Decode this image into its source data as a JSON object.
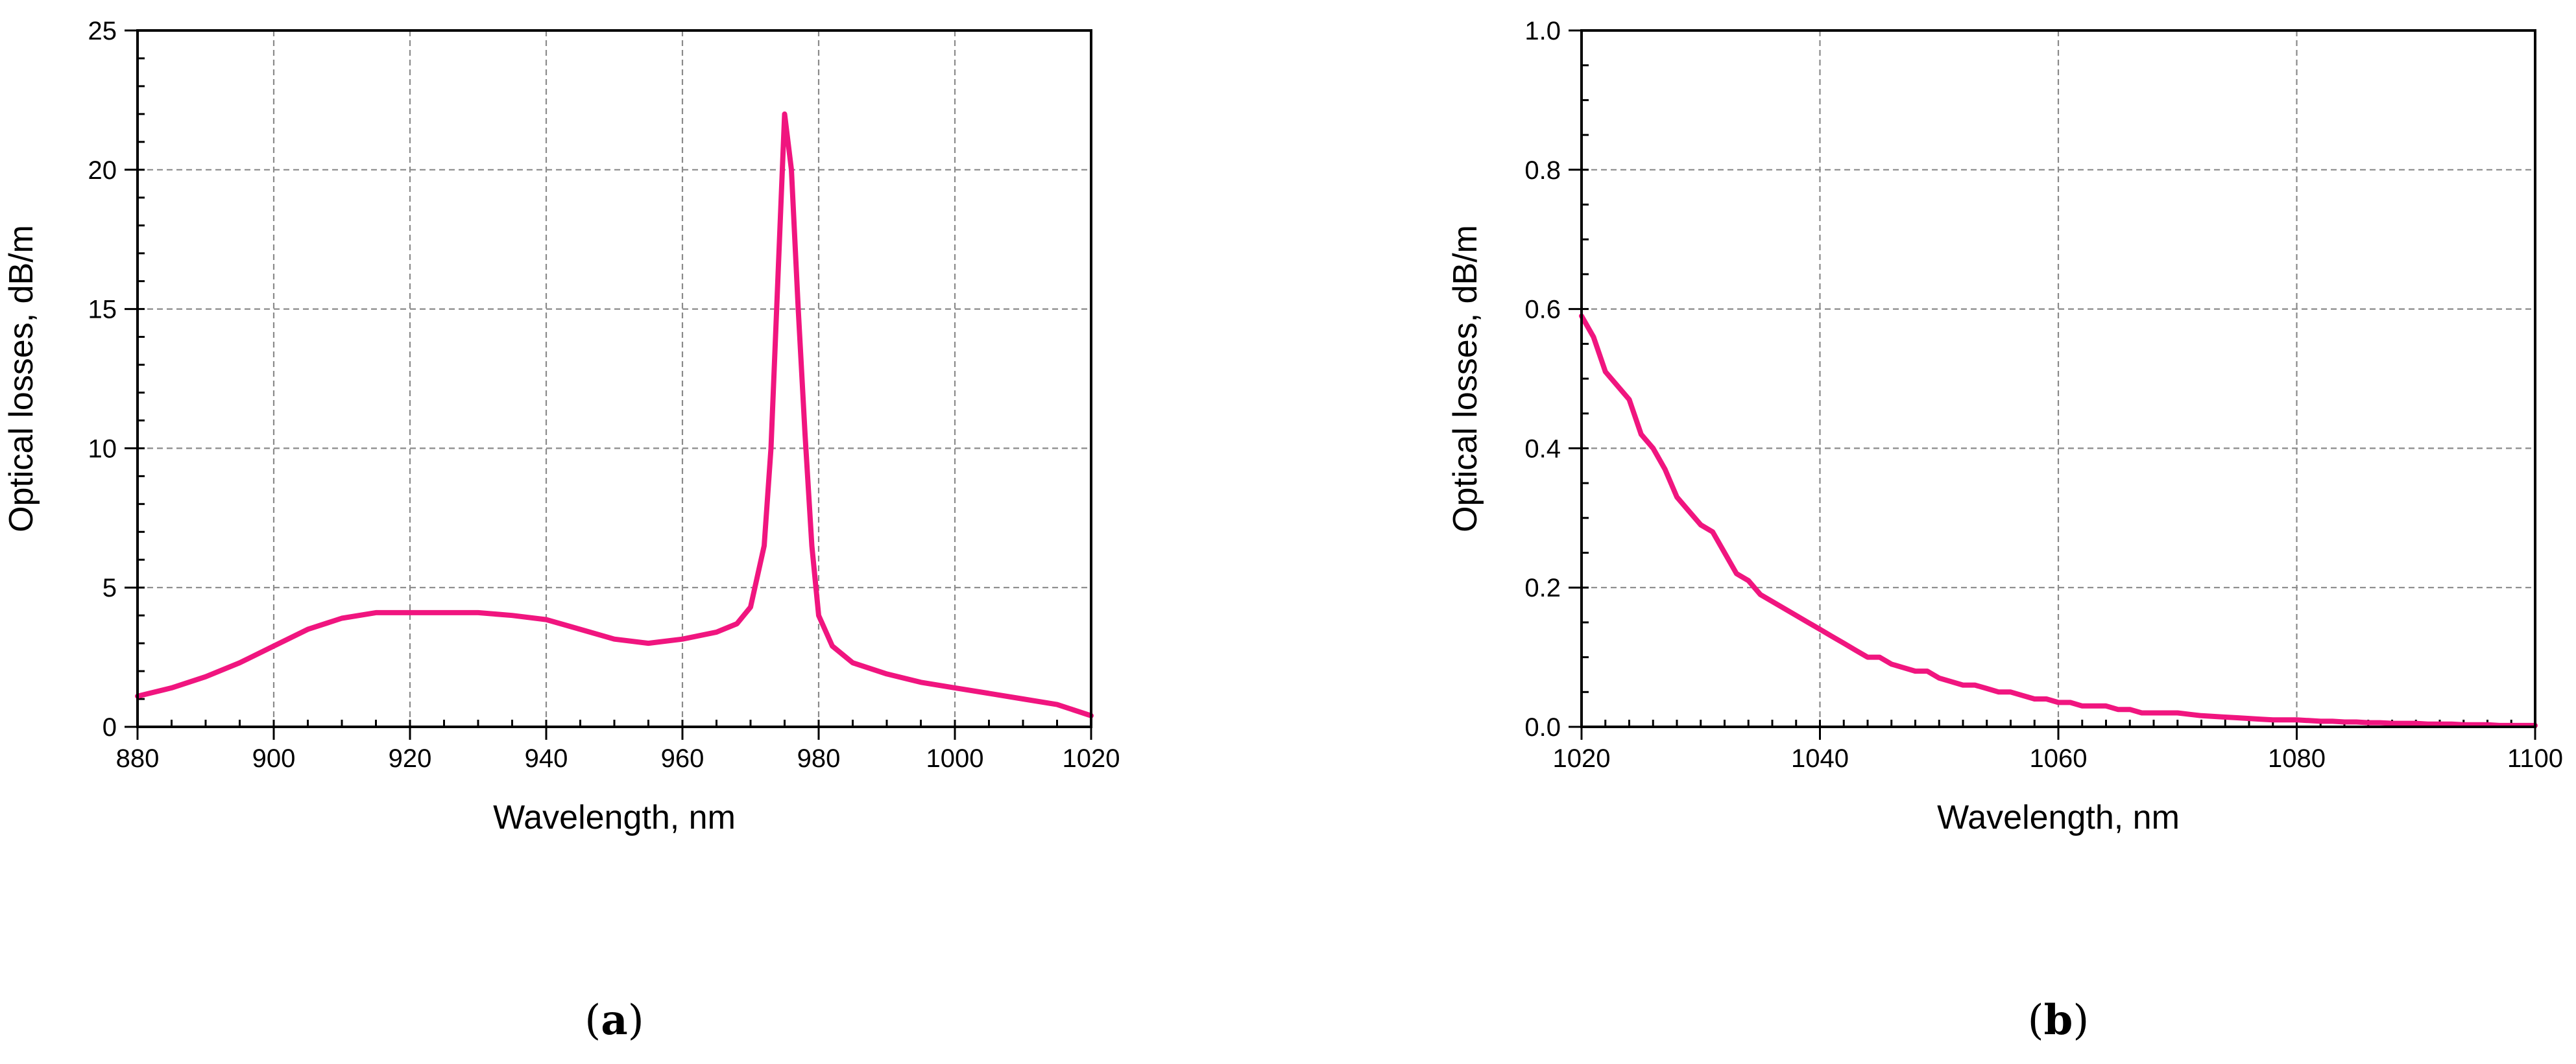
{
  "colors": {
    "series": "#f0157f",
    "axis": "#000000",
    "grid": "#8a8a8a"
  },
  "chart_data": [
    {
      "type": "line",
      "panel_label": {
        "open": "(",
        "letter": "a",
        "close": ")"
      },
      "xlabel": "Wavelength, nm",
      "ylabel": "Optical losses, dB/m",
      "xlim": [
        880,
        1020
      ],
      "ylim": [
        0,
        25
      ],
      "xticks": [
        880,
        900,
        920,
        940,
        960,
        980,
        1000,
        1020
      ],
      "yticks": [
        0,
        5,
        10,
        15,
        20,
        25
      ],
      "x_minor_step": 5,
      "y_minor_step": 1,
      "grid": true,
      "series": [
        {
          "x": [
            880,
            885,
            890,
            895,
            900,
            905,
            910,
            915,
            920,
            925,
            930,
            935,
            940,
            945,
            950,
            955,
            960,
            965,
            968,
            970,
            972,
            973,
            974,
            975,
            976,
            977,
            978,
            979,
            980,
            982,
            985,
            990,
            995,
            1000,
            1005,
            1010,
            1015,
            1020
          ],
          "y": [
            1.1,
            1.4,
            1.8,
            2.3,
            2.9,
            3.5,
            3.9,
            4.1,
            4.1,
            4.1,
            4.1,
            4.0,
            3.85,
            3.5,
            3.15,
            3.0,
            3.15,
            3.4,
            3.7,
            4.3,
            6.5,
            10.0,
            16.0,
            22.0,
            20.0,
            15.0,
            10.5,
            6.5,
            4.0,
            2.9,
            2.3,
            1.9,
            1.6,
            1.4,
            1.2,
            1.0,
            0.8,
            0.4
          ]
        }
      ]
    },
    {
      "type": "line",
      "panel_label": {
        "open": "(",
        "letter": "b",
        "close": ")"
      },
      "xlabel": "Wavelength, nm",
      "ylabel": "Optical losses, dB/m",
      "xlim": [
        1020,
        1100
      ],
      "ylim": [
        0,
        1.0
      ],
      "xticks": [
        1020,
        1040,
        1060,
        1080,
        1100
      ],
      "yticks": [
        0.0,
        0.2,
        0.4,
        0.6,
        0.8,
        1.0
      ],
      "x_minor_step": 2,
      "y_minor_step": 0.05,
      "grid": true,
      "series": [
        {
          "x": [
            1020,
            1021,
            1022,
            1023,
            1024,
            1025,
            1026,
            1027,
            1028,
            1029,
            1030,
            1031,
            1032,
            1033,
            1034,
            1035,
            1036,
            1037,
            1038,
            1039,
            1040,
            1041,
            1042,
            1043,
            1044,
            1045,
            1046,
            1047,
            1048,
            1049,
            1050,
            1051,
            1052,
            1053,
            1054,
            1055,
            1056,
            1057,
            1058,
            1059,
            1060,
            1061,
            1062,
            1063,
            1064,
            1065,
            1066,
            1067,
            1068,
            1069,
            1070,
            1071,
            1072,
            1073,
            1074,
            1075,
            1076,
            1077,
            1078,
            1079,
            1080,
            1081,
            1082,
            1083,
            1084,
            1085,
            1086,
            1087,
            1088,
            1089,
            1090,
            1091,
            1092,
            1093,
            1094,
            1095,
            1096,
            1097,
            1098,
            1099,
            1100
          ],
          "y": [
            0.59,
            0.56,
            0.51,
            0.49,
            0.47,
            0.42,
            0.4,
            0.37,
            0.33,
            0.31,
            0.29,
            0.28,
            0.25,
            0.22,
            0.21,
            0.19,
            0.18,
            0.17,
            0.16,
            0.15,
            0.14,
            0.13,
            0.12,
            0.11,
            0.1,
            0.1,
            0.09,
            0.085,
            0.08,
            0.08,
            0.07,
            0.065,
            0.06,
            0.06,
            0.055,
            0.05,
            0.05,
            0.045,
            0.04,
            0.04,
            0.035,
            0.035,
            0.03,
            0.03,
            0.03,
            0.025,
            0.025,
            0.02,
            0.02,
            0.02,
            0.02,
            0.018,
            0.016,
            0.015,
            0.014,
            0.013,
            0.012,
            0.011,
            0.01,
            0.01,
            0.01,
            0.009,
            0.008,
            0.008,
            0.007,
            0.007,
            0.006,
            0.006,
            0.005,
            0.005,
            0.005,
            0.004,
            0.004,
            0.004,
            0.003,
            0.003,
            0.003,
            0.002,
            0.002,
            0.002,
            0.002
          ]
        }
      ]
    }
  ]
}
